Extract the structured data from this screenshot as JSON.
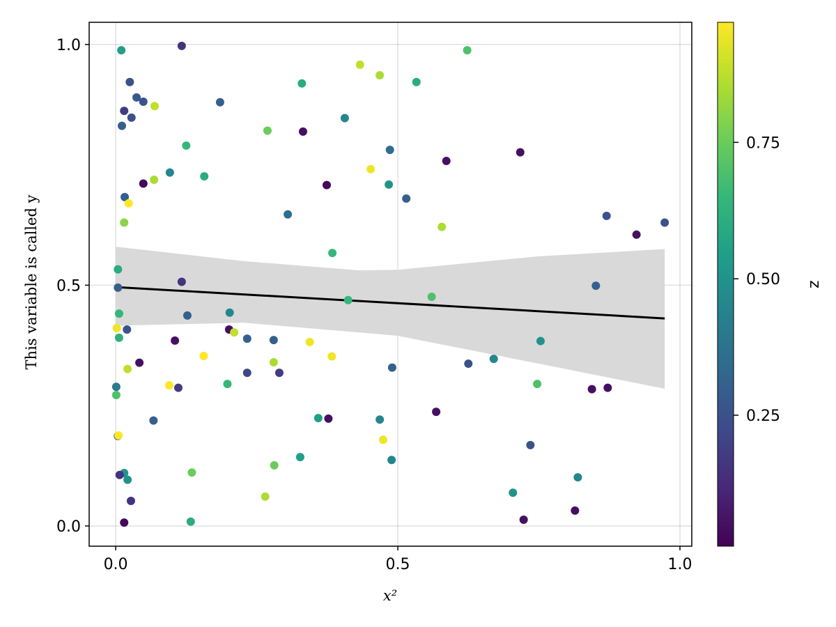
{
  "chart_data": {
    "type": "scatter",
    "title": "",
    "xlabel": "x²",
    "ylabel": "This variable is called y",
    "xlim": [
      -0.047,
      1.021
    ],
    "ylim": [
      -0.042,
      1.046
    ],
    "xticks": [
      0.0,
      0.5,
      1.0
    ],
    "xtick_labels": [
      "0.0",
      "0.5",
      "1.0"
    ],
    "yticks": [
      0.0,
      0.5,
      1.0
    ],
    "ytick_labels": [
      "0.0",
      "0.5",
      "1.0"
    ],
    "grid": true,
    "colormap": "viridis",
    "colorbar": {
      "label": "z",
      "range": [
        0.01,
        0.97
      ],
      "ticks": [
        0.25,
        0.5,
        0.75
      ],
      "tick_labels": [
        "0.25",
        "0.50",
        "0.75"
      ]
    },
    "regression_line": {
      "x": [
        0.0,
        0.973
      ],
      "y": [
        0.496,
        0.431
      ],
      "color": "#000000"
    },
    "confidence_band": {
      "x": [
        0.0,
        0.227,
        0.43,
        0.5,
        0.75,
        0.973
      ],
      "upper": [
        0.58,
        0.55,
        0.531,
        0.532,
        0.56,
        0.575
      ],
      "lower": [
        0.416,
        0.422,
        0.402,
        0.395,
        0.337,
        0.285
      ],
      "color": "#d9d9d9"
    },
    "points": [
      [
        0.01,
        0.988,
        0.55
      ],
      [
        0.117,
        0.997,
        0.15
      ],
      [
        0.025,
        0.922,
        0.25
      ],
      [
        0.037,
        0.89,
        0.28
      ],
      [
        0.049,
        0.881,
        0.25
      ],
      [
        0.015,
        0.862,
        0.18
      ],
      [
        0.028,
        0.848,
        0.25
      ],
      [
        0.011,
        0.831,
        0.3
      ],
      [
        0.069,
        0.872,
        0.88
      ],
      [
        0.185,
        0.88,
        0.3
      ],
      [
        0.125,
        0.79,
        0.65
      ],
      [
        0.096,
        0.734,
        0.45
      ],
      [
        0.157,
        0.726,
        0.6
      ],
      [
        0.049,
        0.711,
        0.03
      ],
      [
        0.068,
        0.719,
        0.85
      ],
      [
        0.016,
        0.683,
        0.3
      ],
      [
        0.023,
        0.67,
        0.97
      ],
      [
        0.015,
        0.63,
        0.8
      ],
      [
        0.33,
        0.919,
        0.6
      ],
      [
        0.433,
        0.958,
        0.88
      ],
      [
        0.468,
        0.936,
        0.85
      ],
      [
        0.533,
        0.922,
        0.6
      ],
      [
        0.623,
        0.988,
        0.7
      ],
      [
        0.269,
        0.821,
        0.75
      ],
      [
        0.332,
        0.819,
        0.05
      ],
      [
        0.406,
        0.847,
        0.45
      ],
      [
        0.452,
        0.741,
        0.95
      ],
      [
        0.486,
        0.781,
        0.35
      ],
      [
        0.484,
        0.709,
        0.5
      ],
      [
        0.374,
        0.708,
        0.03
      ],
      [
        0.515,
        0.68,
        0.3
      ],
      [
        0.305,
        0.647,
        0.35
      ],
      [
        0.586,
        0.758,
        0.05
      ],
      [
        0.717,
        0.776,
        0.05
      ],
      [
        0.578,
        0.621,
        0.85
      ],
      [
        0.87,
        0.644,
        0.25
      ],
      [
        0.923,
        0.605,
        0.05
      ],
      [
        0.973,
        0.63,
        0.25
      ],
      [
        0.384,
        0.567,
        0.65
      ],
      [
        0.004,
        0.533,
        0.6
      ],
      [
        0.004,
        0.495,
        0.3
      ],
      [
        0.117,
        0.507,
        0.15
      ],
      [
        0.006,
        0.441,
        0.65
      ],
      [
        0.412,
        0.469,
        0.65
      ],
      [
        0.56,
        0.476,
        0.7
      ],
      [
        0.851,
        0.499,
        0.3
      ],
      [
        0.002,
        0.411,
        0.95
      ],
      [
        0.02,
        0.408,
        0.25
      ],
      [
        0.127,
        0.437,
        0.3
      ],
      [
        0.202,
        0.443,
        0.45
      ],
      [
        0.201,
        0.408,
        0.05
      ],
      [
        0.21,
        0.402,
        0.88
      ],
      [
        0.233,
        0.389,
        0.3
      ],
      [
        0.28,
        0.386,
        0.3
      ],
      [
        0.006,
        0.391,
        0.62
      ],
      [
        0.105,
        0.385,
        0.05
      ],
      [
        0.344,
        0.382,
        0.95
      ],
      [
        0.383,
        0.352,
        0.95
      ],
      [
        0.156,
        0.353,
        0.97
      ],
      [
        0.042,
        0.339,
        0.05
      ],
      [
        0.28,
        0.34,
        0.85
      ],
      [
        0.021,
        0.326,
        0.88
      ],
      [
        0.233,
        0.318,
        0.22
      ],
      [
        0.29,
        0.318,
        0.18
      ],
      [
        0.49,
        0.329,
        0.3
      ],
      [
        0.625,
        0.337,
        0.25
      ],
      [
        0.67,
        0.347,
        0.45
      ],
      [
        0.753,
        0.384,
        0.5
      ],
      [
        0.001,
        0.289,
        0.4
      ],
      [
        0.001,
        0.272,
        0.7
      ],
      [
        0.095,
        0.292,
        0.97
      ],
      [
        0.111,
        0.287,
        0.18
      ],
      [
        0.198,
        0.295,
        0.65
      ],
      [
        0.747,
        0.295,
        0.7
      ],
      [
        0.844,
        0.284,
        0.05
      ],
      [
        0.872,
        0.287,
        0.05
      ],
      [
        0.067,
        0.219,
        0.3
      ],
      [
        0.359,
        0.224,
        0.55
      ],
      [
        0.377,
        0.223,
        0.05
      ],
      [
        0.468,
        0.221,
        0.45
      ],
      [
        0.568,
        0.237,
        0.05
      ],
      [
        0.004,
        0.187,
        0.3
      ],
      [
        0.005,
        0.188,
        0.97
      ],
      [
        0.474,
        0.179,
        0.95
      ],
      [
        0.735,
        0.168,
        0.25
      ],
      [
        0.327,
        0.143,
        0.55
      ],
      [
        0.281,
        0.126,
        0.75
      ],
      [
        0.489,
        0.137,
        0.45
      ],
      [
        0.135,
        0.111,
        0.75
      ],
      [
        0.015,
        0.11,
        0.5
      ],
      [
        0.007,
        0.106,
        0.15
      ],
      [
        0.021,
        0.096,
        0.5
      ],
      [
        0.819,
        0.101,
        0.45
      ],
      [
        0.704,
        0.069,
        0.5
      ],
      [
        0.027,
        0.052,
        0.15
      ],
      [
        0.265,
        0.061,
        0.85
      ],
      [
        0.015,
        0.007,
        0.03
      ],
      [
        0.133,
        0.009,
        0.6
      ],
      [
        0.723,
        0.013,
        0.05
      ],
      [
        0.814,
        0.032,
        0.05
      ]
    ]
  }
}
